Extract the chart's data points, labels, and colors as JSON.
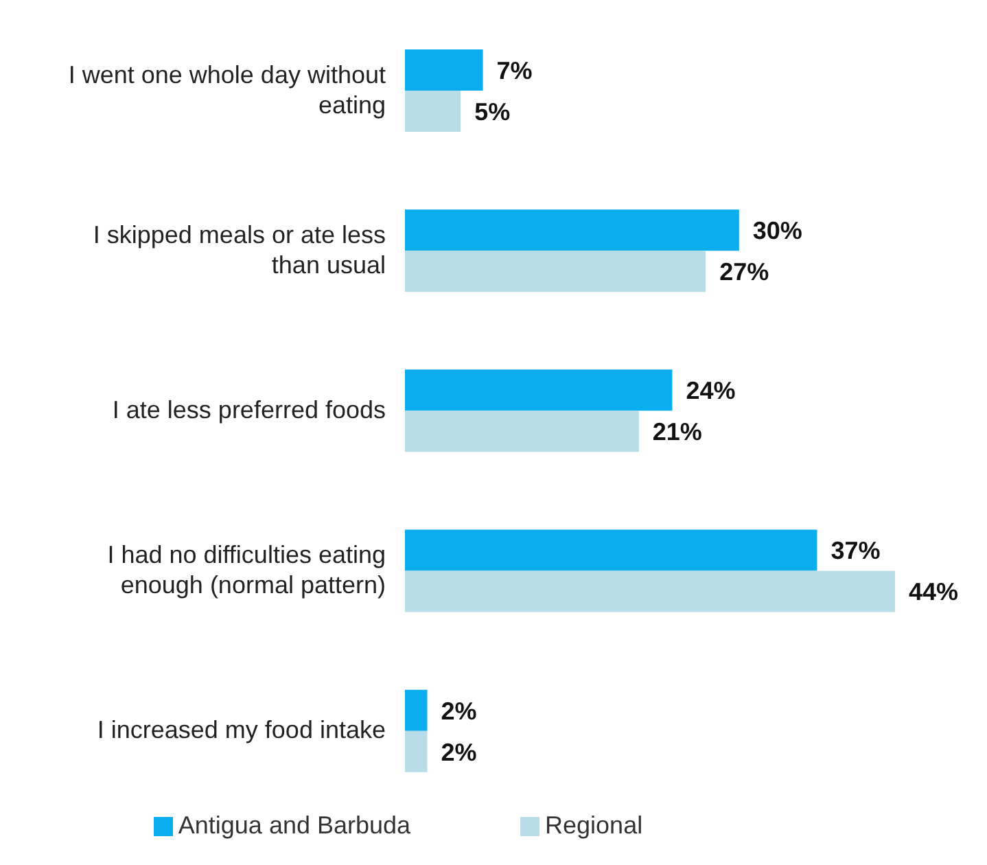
{
  "chart_data": {
    "type": "bar",
    "orientation": "horizontal",
    "categories": [
      "I went one whole day without eating",
      "I skipped meals or ate less than usual",
      "I ate less preferred foods",
      "I had no difficulties eating enough (normal pattern)",
      "I increased my food intake"
    ],
    "series": [
      {
        "name": "Antigua and Barbuda",
        "color": "#0aaeef",
        "values": [
          7,
          30,
          24,
          37,
          2
        ],
        "value_labels": [
          "7%",
          "30%",
          "24%",
          "37%",
          "2%"
        ]
      },
      {
        "name": "Regional",
        "color": "#b8dde9",
        "values": [
          5,
          27,
          21,
          44,
          2
        ],
        "value_labels": [
          "5%",
          "27%",
          "21%",
          "44%",
          "2%"
        ]
      }
    ],
    "legend": "bottom",
    "grid": false
  }
}
